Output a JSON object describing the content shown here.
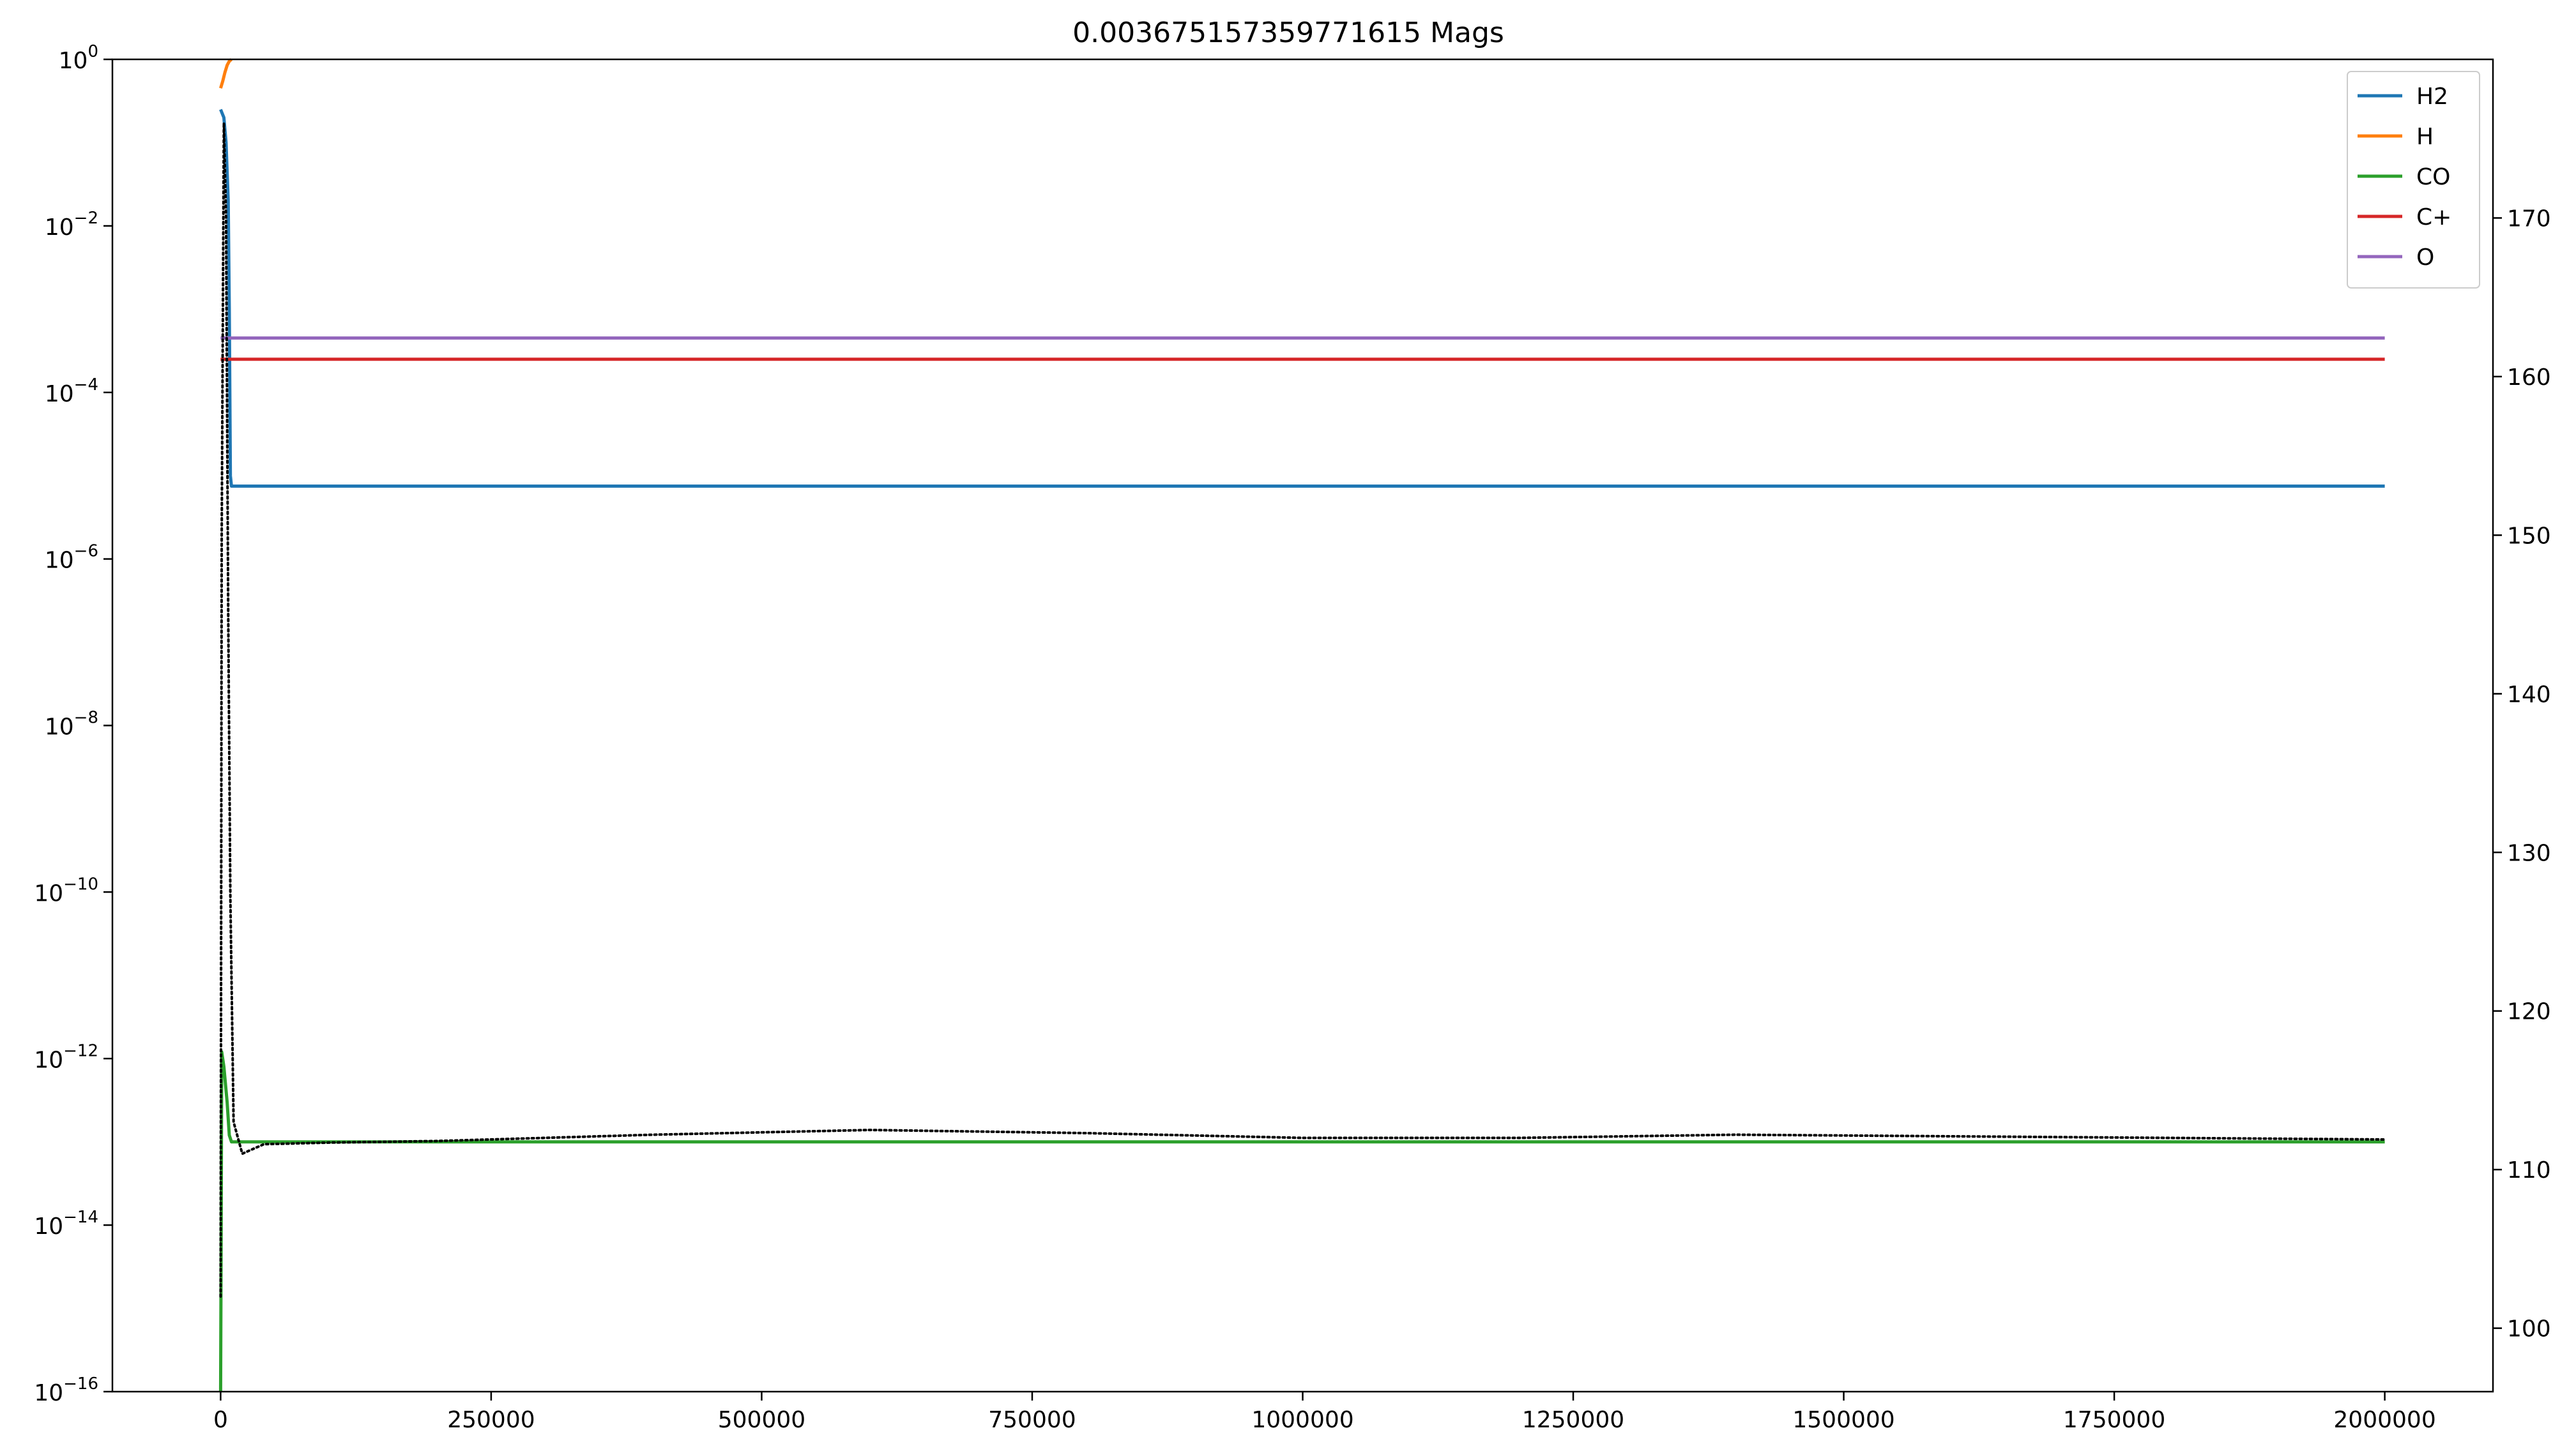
{
  "chart_data": {
    "type": "line",
    "title": "0.003675157359771615 Mags",
    "xlabel": "",
    "ylabel": "",
    "ylabel_right": "",
    "xlim": [
      -100000,
      2100000
    ],
    "ylim": [
      1e-16,
      1
    ],
    "yscale": "log",
    "y2lim": [
      96,
      180
    ],
    "x_ticks": [
      0,
      250000,
      500000,
      750000,
      1000000,
      1250000,
      1500000,
      1750000,
      2000000
    ],
    "x_tick_labels": [
      "0",
      "250000",
      "500000",
      "750000",
      "1000000",
      "1250000",
      "1500000",
      "1750000",
      "2000000"
    ],
    "y_ticks": [
      {
        "base": "10",
        "exp": "0"
      },
      {
        "base": "10",
        "exp": "−2"
      },
      {
        "base": "10",
        "exp": "−4"
      },
      {
        "base": "10",
        "exp": "−6"
      },
      {
        "base": "10",
        "exp": "−8"
      },
      {
        "base": "10",
        "exp": "−10"
      },
      {
        "base": "10",
        "exp": "−12"
      },
      {
        "base": "10",
        "exp": "−14"
      },
      {
        "base": "10",
        "exp": "−16"
      }
    ],
    "y2_ticks": [
      100,
      110,
      120,
      130,
      140,
      150,
      160,
      170
    ],
    "grid": false,
    "legend_position": "top-right",
    "series": [
      {
        "name": "H2",
        "color": "#1f77b4",
        "axis": "left",
        "x": [
          0,
          3000,
          5000,
          7000,
          8000,
          9000,
          10000,
          2000000
        ],
        "y": [
          0.25,
          0.2,
          0.1,
          0.02,
          0.001,
          1e-05,
          7.5e-06,
          7.5e-06
        ]
      },
      {
        "name": "H",
        "color": "#ff7f0e",
        "axis": "left",
        "x": [
          0,
          2000,
          4000,
          6000,
          8000,
          10000
        ],
        "y": [
          0.45,
          0.55,
          0.7,
          0.85,
          0.95,
          1.0
        ]
      },
      {
        "name": "CO",
        "color": "#2ca02c",
        "axis": "left",
        "x": [
          0,
          500,
          1000,
          3000,
          6000,
          8000,
          10000,
          2000000
        ],
        "y": [
          1e-16,
          1e-14,
          1.2e-12,
          8e-13,
          3e-13,
          1.2e-13,
          1e-13,
          1e-13
        ]
      },
      {
        "name": "C+",
        "color": "#d62728",
        "axis": "left",
        "x": [
          0,
          2000000
        ],
        "y": [
          0.00025,
          0.00025
        ]
      },
      {
        "name": "O",
        "color": "#9467bd",
        "axis": "left",
        "x": [
          0,
          2000000
        ],
        "y": [
          0.00045,
          0.00045
        ]
      },
      {
        "name": "",
        "color": "#000000",
        "axis": "right",
        "style": "dotted",
        "x": [
          0,
          1000,
          3000,
          5000,
          7000,
          9000,
          12000,
          20000,
          40000,
          100000,
          200000,
          400000,
          600000,
          800000,
          1000000,
          1200000,
          1400000,
          1600000,
          1800000,
          2000000
        ],
        "y": [
          102,
          150,
          176,
          170,
          145,
          127,
          113,
          111,
          111.6,
          111.7,
          111.8,
          112.2,
          112.5,
          112.3,
          112.0,
          112.0,
          112.2,
          112.1,
          112.0,
          111.9
        ]
      }
    ]
  }
}
